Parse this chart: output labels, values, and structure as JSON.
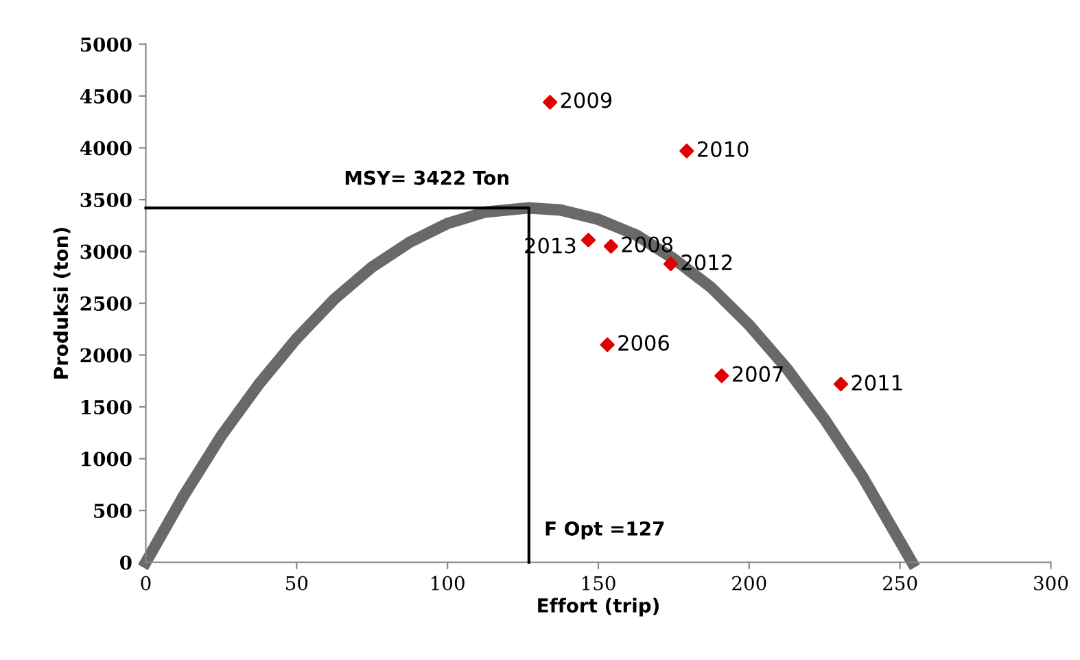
{
  "chart_data": {
    "type": "scatter",
    "xlabel": "Effort (trip)",
    "ylabel": "Produksi (ton)",
    "xlim": [
      0,
      300
    ],
    "ylim": [
      0,
      5000
    ],
    "xticks": [
      0,
      50,
      100,
      150,
      200,
      250,
      300
    ],
    "yticks": [
      0,
      500,
      1000,
      1500,
      2000,
      2500,
      3000,
      3500,
      4000,
      4500,
      5000
    ],
    "grid": false,
    "legend": false,
    "series": [
      {
        "type": "line",
        "color": "#696969",
        "x": [
          0,
          12.5,
          25,
          37.5,
          50,
          62.5,
          75,
          87.5,
          100,
          112.5,
          127,
          137.5,
          150,
          162.5,
          175,
          187.5,
          200,
          212.5,
          225,
          237.5,
          254
        ],
        "values": [
          0,
          640,
          1220,
          1720,
          2160,
          2540,
          2850,
          3090,
          3270,
          3380,
          3420,
          3400,
          3310,
          3160,
          2930,
          2650,
          2290,
          1870,
          1380,
          830,
          0
        ]
      },
      {
        "type": "line",
        "color": "#000000",
        "x": [
          0,
          127,
          127
        ],
        "values": [
          3420,
          3420,
          0
        ]
      },
      {
        "marker": "diamond",
        "color": "#e00000",
        "x": [
          134,
          179.3,
          146.7,
          154.2,
          174,
          153,
          190.9,
          230.4
        ],
        "values": [
          4440,
          3970,
          3110,
          3050,
          2880,
          2100,
          1800,
          1720
        ]
      }
    ],
    "annotations": [
      {
        "text": "2009",
        "x": 134,
        "y": 4442
      },
      {
        "text": "2010",
        "x": 179.3,
        "y": 3969
      },
      {
        "text": "2013",
        "x": 146.7,
        "y": 3112
      },
      {
        "text": "2008",
        "x": 154.2,
        "y": 3050
      },
      {
        "text": "2012",
        "x": 174,
        "y": 2877
      },
      {
        "text": "2006",
        "x": 153,
        "y": 2100
      },
      {
        "text": "2007",
        "x": 190.9,
        "y": 1800
      },
      {
        "text": "2011",
        "x": 230.4,
        "y": 1715
      },
      {
        "text": "MSY= 3422 Ton",
        "x": 127,
        "y": 3422
      },
      {
        "text": "F Opt =127",
        "x": 127,
        "y": 0
      }
    ]
  }
}
